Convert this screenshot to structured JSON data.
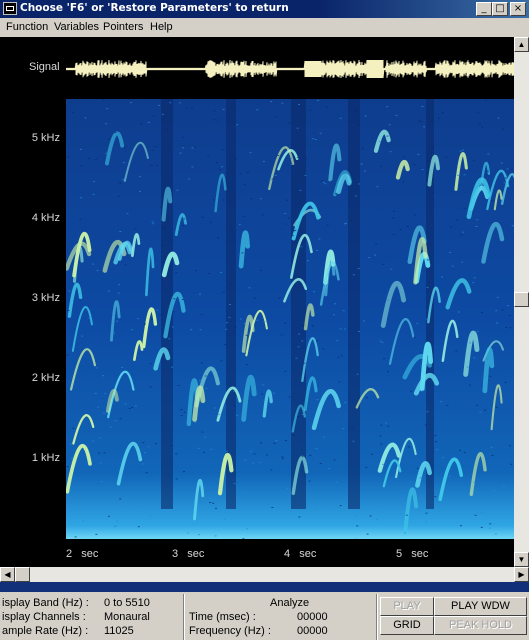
{
  "window": {
    "title": "Choose 'F6' or 'Restore Parameters' to return"
  },
  "menu": {
    "items": [
      "Function",
      "Variables",
      "Pointers",
      "Help"
    ]
  },
  "plot": {
    "signal_label": "Signal",
    "y_ticks": [
      "5 kHz",
      "4 kHz",
      "3 kHz",
      "2 kHz",
      "1 kHz"
    ],
    "x_ticks": [
      "2",
      "3",
      "4",
      "5"
    ],
    "x_unit": "sec"
  },
  "chart_data": {
    "type": "heatmap",
    "title": "",
    "xlabel": "sec",
    "ylabel": "",
    "x_ticks": [
      2,
      3,
      4,
      5
    ],
    "y_ticks_khz": [
      1,
      2,
      3,
      4,
      5
    ],
    "y_range_khz": [
      0,
      5.51
    ],
    "colors": {
      "background": "#0e3d8e",
      "energy_low": "#1a6fd0",
      "energy_mid": "#3fc6e8",
      "energy_high": "#e8f0a0"
    }
  },
  "status": {
    "display_band_label": "isplay Band (Hz) :",
    "display_band_value": "0 to 5510",
    "display_channels_label": "isplay Channels :",
    "display_channels_value": "Monaural",
    "sample_rate_label": "ample Rate (Hz) :",
    "sample_rate_value": "11025",
    "analyze_title": "Analyze",
    "time_label": "Time (msec) :",
    "time_value": "00000",
    "frequency_label": "Frequency (Hz) :",
    "frequency_value": "00000"
  },
  "buttons": {
    "play": "PLAY",
    "play_wdw": "PLAY WDW",
    "grid": "GRID",
    "peak_hold": "PEAK HOLD"
  }
}
